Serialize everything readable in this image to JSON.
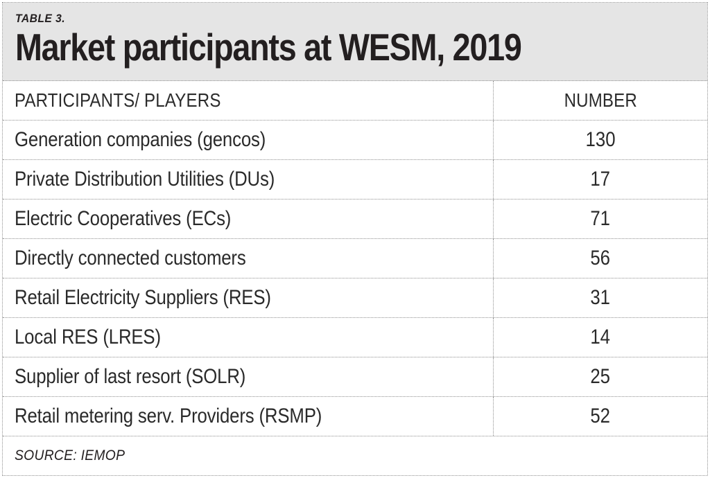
{
  "colors": {
    "band_bg": "#e5e5e5",
    "border": "#8f8f8f",
    "text": "#231f20",
    "background": "#ffffff"
  },
  "header": {
    "kicker": "TABLE 3.",
    "title": "Market participants at WESM, 2019"
  },
  "chart_data": {
    "type": "table",
    "title": "Market participants at WESM, 2019",
    "columns": [
      "PARTICIPANTS/ PLAYERS",
      "NUMBER"
    ],
    "rows": [
      [
        "Generation companies (gencos)",
        "130"
      ],
      [
        "Private Distribution Utilities (DUs)",
        "17"
      ],
      [
        "Electric Cooperatives (ECs)",
        "71"
      ],
      [
        "Directly connected customers",
        "56"
      ],
      [
        "Retail Electricity Suppliers (RES)",
        "31"
      ],
      [
        "Local RES (LRES)",
        "14"
      ],
      [
        "Supplier of last resort (SOLR)",
        "25"
      ],
      [
        "Retail metering serv. Providers (RSMP)",
        "52"
      ]
    ],
    "source": "SOURCE: IEMOP",
    "layout": {
      "grid": "dotted",
      "number_column_align": "center",
      "participant_column_align": "left"
    }
  }
}
